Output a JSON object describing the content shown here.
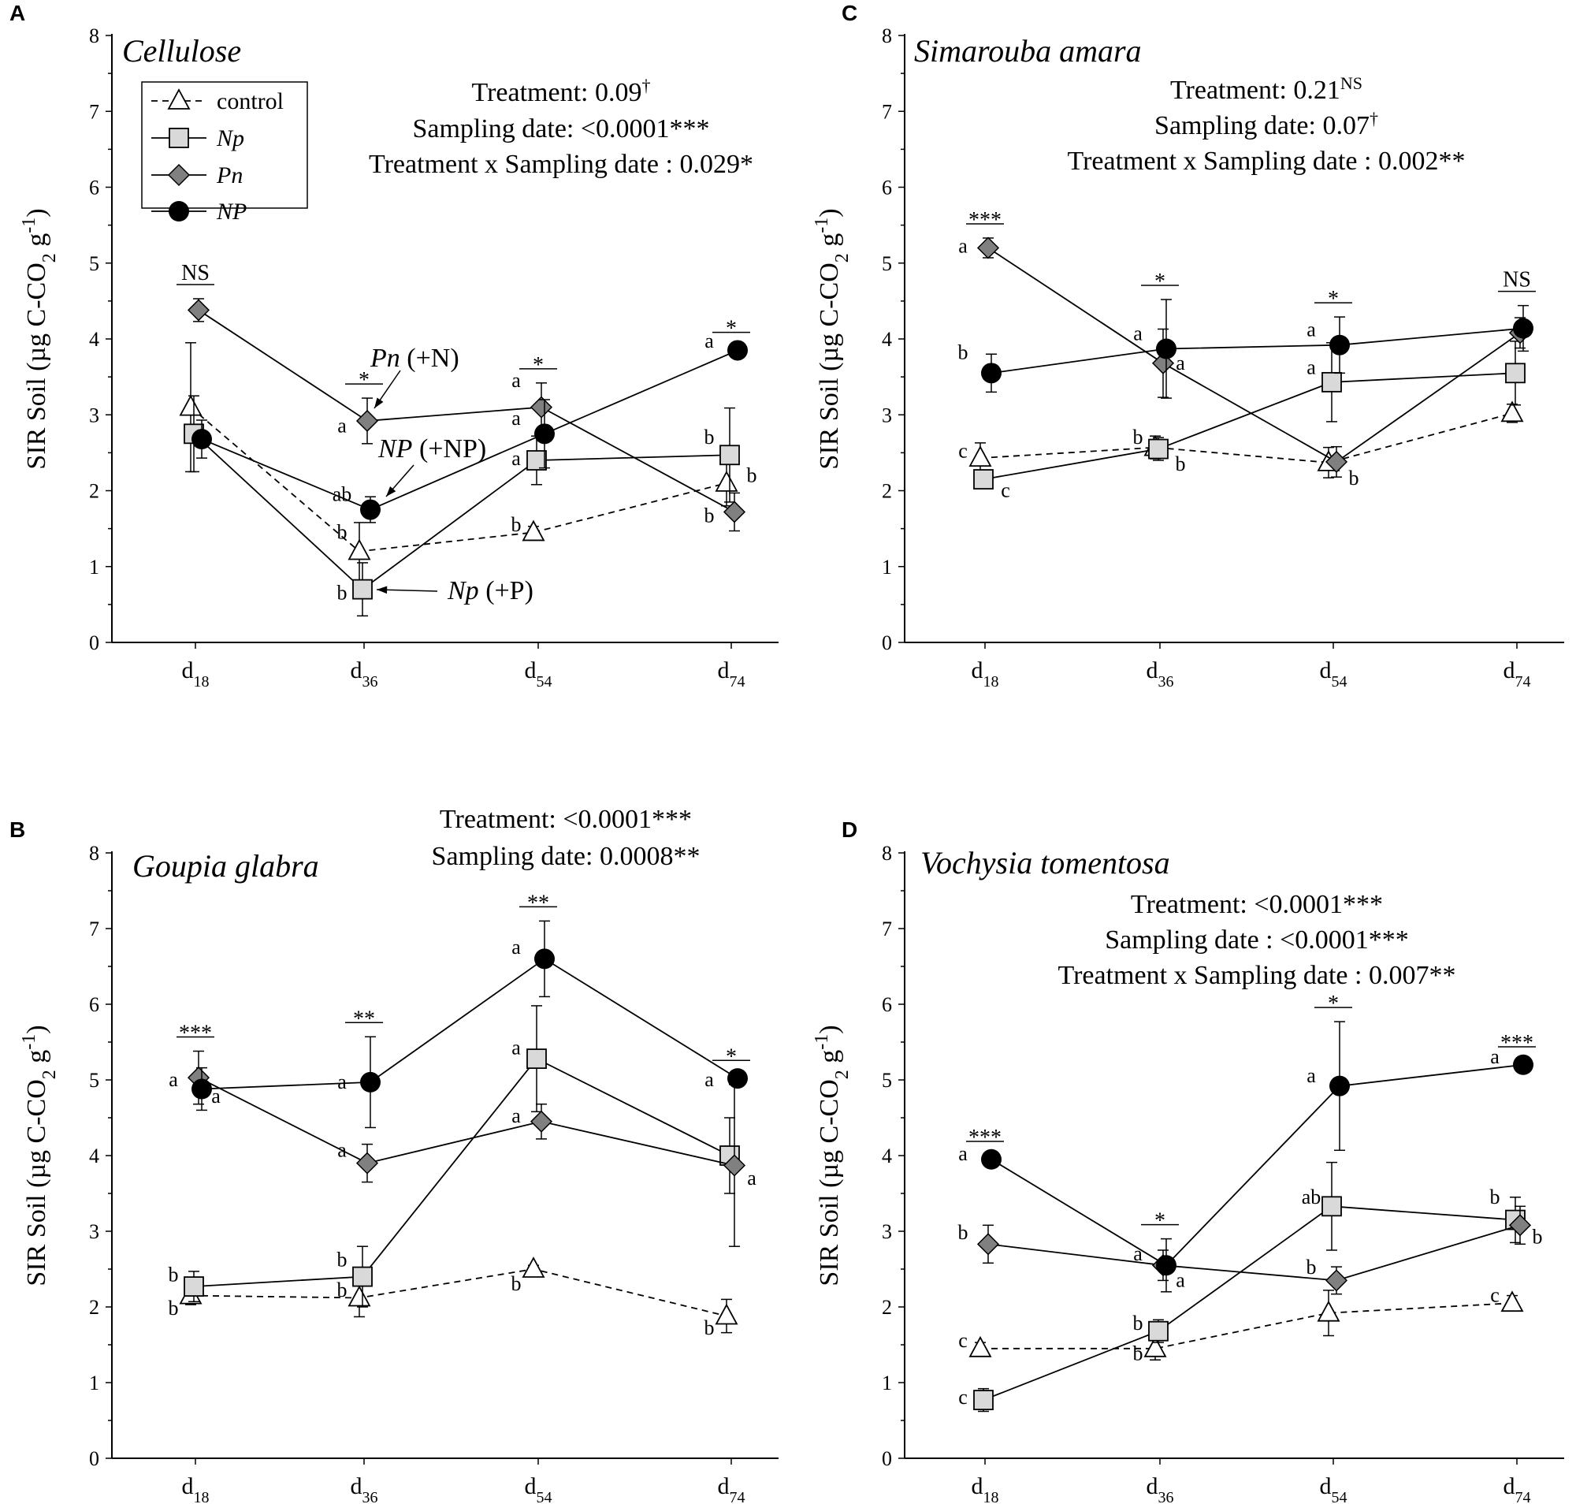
{
  "figure": {
    "ylabel": "SIR Soil (µg C-CO2 g-1)",
    "ylabel_parts": [
      "SIR Soil (µg C-CO",
      "2",
      " g",
      "-1",
      ")"
    ],
    "categories": [
      "d18",
      "d36",
      "d54",
      "d74"
    ],
    "category_parts": [
      [
        "d",
        "18"
      ],
      [
        "d",
        "36"
      ],
      [
        "d",
        "54"
      ],
      [
        "d",
        "74"
      ]
    ],
    "ylim": [
      0,
      8
    ],
    "yticks": [
      0,
      1,
      2,
      3,
      4,
      5,
      6,
      7,
      8
    ],
    "legend": [
      {
        "key": "control",
        "label": "control"
      },
      {
        "key": "Np",
        "label": "Np"
      },
      {
        "key": "Pn",
        "label": "Pn"
      },
      {
        "key": "NP",
        "label": "NP"
      }
    ],
    "colors": {
      "control_fill": "#ffffff",
      "Np_fill": "#d9d9d9",
      "Pn_fill": "#808080",
      "NP_fill": "#000000",
      "line": "#000000"
    }
  },
  "chart_data": [
    {
      "panel": "A",
      "type": "line",
      "title": "Cellulose",
      "ylim": [
        0,
        8
      ],
      "stats": [
        {
          "main": "Treatment: 0.09",
          "sup": "†"
        },
        {
          "main": "Sampling date: <0.0001***",
          "sup": ""
        },
        {
          "main": "Treatment x Sampling date : 0.029*",
          "sup": ""
        }
      ],
      "series": [
        {
          "key": "control",
          "values": [
            3.1,
            1.2,
            1.45,
            2.1
          ],
          "errors": [
            0.85,
            0.38,
            0.08,
            0.3
          ]
        },
        {
          "key": "Np",
          "values": [
            2.75,
            0.7,
            2.4,
            2.47
          ],
          "errors": [
            0.5,
            0.35,
            0.32,
            0.62
          ]
        },
        {
          "key": "Pn",
          "values": [
            4.38,
            2.92,
            3.1,
            1.72
          ],
          "errors": [
            0.15,
            0.3,
            0.32,
            0.25
          ]
        },
        {
          "key": "NP",
          "values": [
            2.68,
            1.75,
            2.75,
            3.85
          ],
          "errors": [
            0.25,
            0.17,
            0.45,
            0.05
          ]
        }
      ],
      "significance": [
        "NS",
        "*",
        "*",
        "*"
      ],
      "letters": [
        {
          "cat": 1,
          "text": "b",
          "y": 1.45,
          "side": "left"
        },
        {
          "cat": 1,
          "text": "b",
          "y": 0.65,
          "side": "left"
        },
        {
          "cat": 1,
          "text": "a",
          "y": 2.85,
          "side": "left"
        },
        {
          "cat": 1,
          "text": "ab",
          "y": 1.95,
          "side": "left"
        },
        {
          "cat": 2,
          "text": "b",
          "y": 1.55,
          "side": "left"
        },
        {
          "cat": 2,
          "text": "a",
          "y": 2.42,
          "side": "left"
        },
        {
          "cat": 2,
          "text": "a",
          "y": 3.45,
          "side": "left"
        },
        {
          "cat": 2,
          "text": "a",
          "y": 2.95,
          "side": "left"
        },
        {
          "cat": 3,
          "text": "a",
          "y": 3.97,
          "side": "left"
        },
        {
          "cat": 3,
          "text": "b",
          "y": 2.7,
          "side": "left"
        },
        {
          "cat": 3,
          "text": "b",
          "y": 2.2,
          "side": "right"
        },
        {
          "cat": 3,
          "text": "b",
          "y": 1.67,
          "side": "left"
        }
      ],
      "annotations": [
        {
          "italic": "Pn",
          "rest": " (+N)"
        },
        {
          "italic": "NP",
          "rest": " (+NP)"
        },
        {
          "italic": "Np",
          "rest": " (+P)"
        }
      ]
    },
    {
      "panel": "B",
      "type": "line",
      "title": "Goupia glabra",
      "ylim": [
        0,
        8
      ],
      "stats": [
        {
          "main": "Treatment:  <0.0001***",
          "sup": ""
        },
        {
          "main": "Sampling date: 0.0008**",
          "sup": ""
        }
      ],
      "series": [
        {
          "key": "control",
          "values": [
            2.15,
            2.12,
            2.5,
            1.88
          ],
          "errors": [
            0.12,
            0.25,
            0.05,
            0.22
          ]
        },
        {
          "key": "Np",
          "values": [
            2.27,
            2.4,
            5.28,
            4.0
          ],
          "errors": [
            0.2,
            0.4,
            0.7,
            0.5
          ]
        },
        {
          "key": "Pn",
          "values": [
            5.03,
            3.9,
            4.45,
            3.87
          ],
          "errors": [
            0.35,
            0.25,
            0.23,
            1.07
          ]
        },
        {
          "key": "NP",
          "values": [
            4.88,
            4.97,
            6.6,
            5.02
          ],
          "errors": [
            0.28,
            0.6,
            0.5,
            0.05
          ]
        }
      ],
      "significance": [
        "***",
        "**",
        "**",
        "*"
      ],
      "letters": [
        {
          "cat": 0,
          "text": "a",
          "y": 5.0,
          "side": "left"
        },
        {
          "cat": 0,
          "text": "a",
          "y": 4.78,
          "side": "right"
        },
        {
          "cat": 0,
          "text": "b",
          "y": 2.42,
          "side": "left"
        },
        {
          "cat": 0,
          "text": "b",
          "y": 1.98,
          "side": "left"
        },
        {
          "cat": 1,
          "text": "a",
          "y": 4.97,
          "side": "left"
        },
        {
          "cat": 1,
          "text": "a",
          "y": 4.07,
          "side": "left"
        },
        {
          "cat": 1,
          "text": "b",
          "y": 2.62,
          "side": "left"
        },
        {
          "cat": 1,
          "text": "b",
          "y": 2.22,
          "side": "left"
        },
        {
          "cat": 2,
          "text": "a",
          "y": 6.75,
          "side": "left"
        },
        {
          "cat": 2,
          "text": "a",
          "y": 5.42,
          "side": "left"
        },
        {
          "cat": 2,
          "text": "a",
          "y": 4.52,
          "side": "left"
        },
        {
          "cat": 2,
          "text": "b",
          "y": 2.3,
          "side": "left"
        },
        {
          "cat": 3,
          "text": "a",
          "y": 5.0,
          "side": "left"
        },
        {
          "cat": 3,
          "text": "a",
          "y": 3.7,
          "side": "right"
        },
        {
          "cat": 3,
          "text": "b",
          "y": 1.72,
          "side": "left"
        }
      ]
    },
    {
      "panel": "C",
      "type": "line",
      "title": "Simarouba amara",
      "ylim": [
        0,
        8
      ],
      "stats": [
        {
          "main": "Treatment: 0.21",
          "sup": "NS"
        },
        {
          "main": "Sampling date: 0.07",
          "sup": "†"
        },
        {
          "main": "Treatment x Sampling date : 0.002**",
          "sup": ""
        }
      ],
      "series": [
        {
          "key": "control",
          "values": [
            2.43,
            2.57,
            2.37,
            3.02
          ],
          "errors": [
            0.2,
            0.15,
            0.2,
            0.12
          ]
        },
        {
          "key": "Np",
          "values": [
            2.15,
            2.55,
            3.43,
            3.55
          ],
          "errors": [
            0.12,
            0.15,
            0.52,
            0.42
          ]
        },
        {
          "key": "Pn",
          "values": [
            5.2,
            3.68,
            2.38,
            4.08
          ],
          "errors": [
            0.13,
            0.45,
            0.2,
            0.2
          ]
        },
        {
          "key": "NP",
          "values": [
            3.55,
            3.87,
            3.92,
            4.14
          ],
          "errors": [
            0.25,
            0.65,
            0.37,
            0.3
          ]
        }
      ],
      "significance": [
        "***",
        "*",
        "*",
        "NS"
      ],
      "letters": [
        {
          "cat": 0,
          "text": "a",
          "y": 5.22,
          "side": "left"
        },
        {
          "cat": 0,
          "text": "b",
          "y": 3.82,
          "side": "left"
        },
        {
          "cat": 0,
          "text": "c",
          "y": 2.52,
          "side": "left"
        },
        {
          "cat": 0,
          "text": "c",
          "y": 2.0,
          "side": "right"
        },
        {
          "cat": 1,
          "text": "a",
          "y": 4.07,
          "side": "left"
        },
        {
          "cat": 1,
          "text": "a",
          "y": 3.68,
          "side": "right"
        },
        {
          "cat": 1,
          "text": "b",
          "y": 2.7,
          "side": "left"
        },
        {
          "cat": 1,
          "text": "b",
          "y": 2.35,
          "side": "right"
        },
        {
          "cat": 2,
          "text": "a",
          "y": 4.12,
          "side": "left"
        },
        {
          "cat": 2,
          "text": "a",
          "y": 3.62,
          "side": "left"
        },
        {
          "cat": 2,
          "text": "b",
          "y": 2.16,
          "side": "right"
        }
      ]
    },
    {
      "panel": "D",
      "type": "line",
      "title": "Vochysia tomentosa",
      "ylim": [
        0,
        8
      ],
      "stats": [
        {
          "main": "Treatment: <0.0001***",
          "sup": ""
        },
        {
          "main": "Sampling date : <0.0001***",
          "sup": ""
        },
        {
          "main": "Treatment x Sampling date : 0.007**",
          "sup": ""
        }
      ],
      "series": [
        {
          "key": "control",
          "values": [
            1.45,
            1.45,
            1.92,
            2.05
          ],
          "errors": [
            0.08,
            0.15,
            0.3,
            0.1
          ]
        },
        {
          "key": "Np",
          "values": [
            0.77,
            1.68,
            3.33,
            3.15
          ],
          "errors": [
            0.15,
            0.15,
            0.58,
            0.3
          ]
        },
        {
          "key": "Pn",
          "values": [
            2.83,
            2.55,
            2.35,
            3.08
          ],
          "errors": [
            0.25,
            0.2,
            0.18,
            0.25
          ]
        },
        {
          "key": "NP",
          "values": [
            3.95,
            2.55,
            4.92,
            5.2
          ],
          "errors": [
            0.05,
            0.35,
            0.85,
            0.05
          ]
        }
      ],
      "significance": [
        "***",
        "*",
        "*",
        "***"
      ],
      "letters": [
        {
          "cat": 0,
          "text": "a",
          "y": 4.02,
          "side": "left"
        },
        {
          "cat": 0,
          "text": "b",
          "y": 2.98,
          "side": "left"
        },
        {
          "cat": 0,
          "text": "c",
          "y": 1.55,
          "side": "left"
        },
        {
          "cat": 0,
          "text": "c",
          "y": 0.8,
          "side": "left"
        },
        {
          "cat": 1,
          "text": "a",
          "y": 2.7,
          "side": "left"
        },
        {
          "cat": 1,
          "text": "a",
          "y": 2.35,
          "side": "right"
        },
        {
          "cat": 1,
          "text": "b",
          "y": 1.78,
          "side": "left"
        },
        {
          "cat": 1,
          "text": "b",
          "y": 1.38,
          "side": "left"
        },
        {
          "cat": 2,
          "text": "a",
          "y": 5.05,
          "side": "left"
        },
        {
          "cat": 2,
          "text": "ab",
          "y": 3.45,
          "side": "left"
        },
        {
          "cat": 2,
          "text": "b",
          "y": 2.52,
          "side": "left"
        },
        {
          "cat": 3,
          "text": "a",
          "y": 5.3,
          "side": "left"
        },
        {
          "cat": 3,
          "text": "b",
          "y": 3.45,
          "side": "left"
        },
        {
          "cat": 3,
          "text": "b",
          "y": 2.92,
          "side": "right"
        },
        {
          "cat": 3,
          "text": "c",
          "y": 2.15,
          "side": "left"
        }
      ]
    }
  ]
}
